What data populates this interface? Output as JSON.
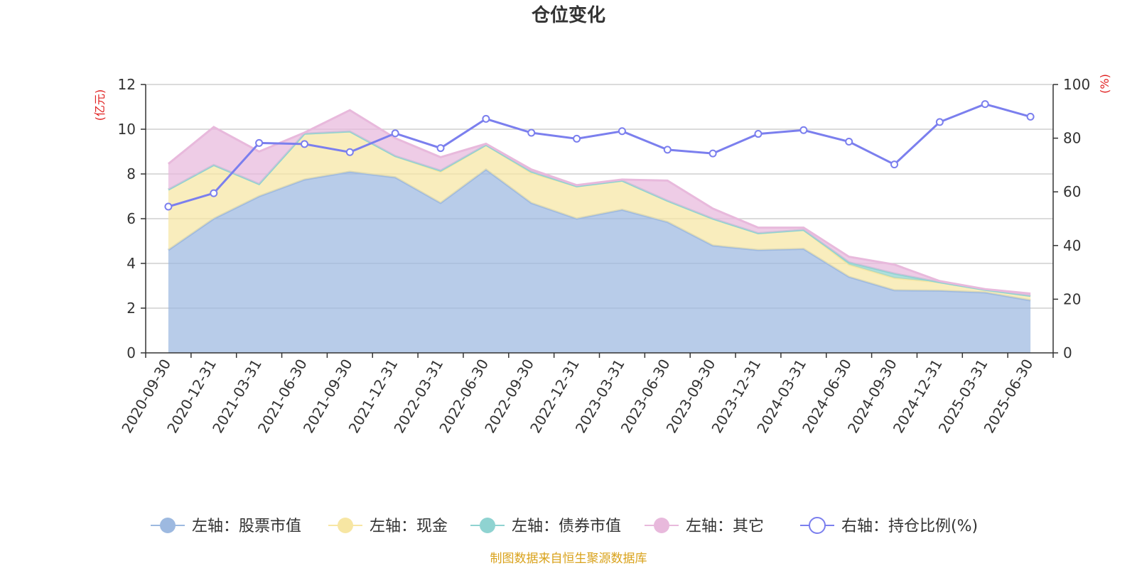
{
  "chart_data": {
    "type": "area",
    "title": "仓位变化",
    "categories": [
      "2020-09-30",
      "2020-12-31",
      "2021-03-31",
      "2021-06-30",
      "2021-09-30",
      "2021-12-31",
      "2022-03-31",
      "2022-06-30",
      "2022-09-30",
      "2022-12-31",
      "2023-03-31",
      "2023-06-30",
      "2023-09-30",
      "2023-12-31",
      "2024-03-31",
      "2024-06-30",
      "2024-09-30",
      "2024-12-31",
      "2025-03-31",
      "2025-06-30"
    ],
    "left_axis": {
      "unit": "(亿元)",
      "ylim": [
        0,
        12
      ],
      "ticks": [
        "0",
        "2",
        "4",
        "6",
        "8",
        "10",
        "12"
      ]
    },
    "right_axis": {
      "unit": "(%)",
      "ylim": [
        0,
        100
      ],
      "ticks": [
        "0",
        "20",
        "40",
        "60",
        "80",
        "100"
      ]
    },
    "grid": true,
    "legend_position": "bottom",
    "series": [
      {
        "name": "左轴：股票市值",
        "axis": "left",
        "stack": true,
        "color": "#9db9e0",
        "values": [
          4.6,
          6.0,
          7.0,
          7.75,
          8.1,
          7.85,
          6.7,
          8.2,
          6.7,
          6.0,
          6.4,
          5.85,
          4.8,
          4.6,
          4.65,
          3.4,
          2.8,
          2.78,
          2.7,
          2.35
        ]
      },
      {
        "name": "左轴：现金",
        "axis": "left",
        "stack": true,
        "color": "#f7e6a3",
        "values": [
          2.7,
          2.4,
          0.55,
          2.05,
          1.8,
          0.95,
          1.4,
          1.1,
          1.35,
          1.45,
          1.3,
          0.95,
          1.2,
          0.75,
          0.85,
          0.55,
          0.55,
          0.38,
          0.12,
          0.2
        ]
      },
      {
        "name": "左轴：债券市值",
        "axis": "left",
        "stack": true,
        "color": "#8fd3d1",
        "values": [
          0,
          0,
          0,
          0,
          0,
          0,
          0.05,
          0,
          0.05,
          0,
          0,
          0,
          0,
          0,
          0,
          0.1,
          0.2,
          0,
          0,
          0
        ]
      },
      {
        "name": "左轴：其它",
        "axis": "left",
        "stack": true,
        "color": "#e8b9dc",
        "values": [
          1.15,
          1.7,
          1.45,
          0.05,
          0.95,
          0.8,
          0.6,
          0.05,
          0.1,
          0.05,
          0.05,
          0.9,
          0.45,
          0.25,
          0.1,
          0.25,
          0.4,
          0.05,
          0.03,
          0.1
        ]
      },
      {
        "name": "右轴：持仓比例(%)",
        "axis": "right",
        "type": "line",
        "color": "#7b7fee",
        "values": [
          54.5,
          59.5,
          78.2,
          77.8,
          74.8,
          81.8,
          76.3,
          87.2,
          82.0,
          79.8,
          82.6,
          75.7,
          74.3,
          81.6,
          83.0,
          78.7,
          70.2,
          86.0,
          92.7,
          88.0
        ]
      }
    ]
  },
  "source_note": "制图数据来自恒生聚源数据库",
  "colors": {
    "left_unit": "#e02020",
    "right_unit": "#e02020",
    "source_note": "#d9a21b"
  }
}
